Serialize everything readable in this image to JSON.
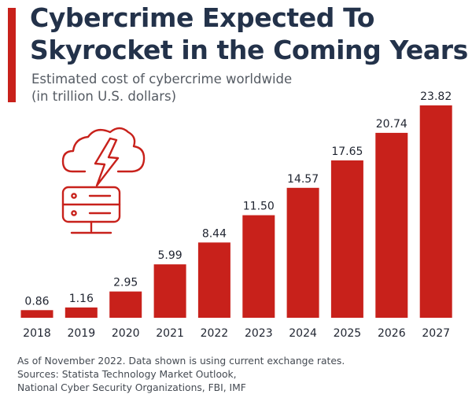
{
  "header": {
    "title_line1": "Cybercrime Expected To",
    "title_line2": "Skyrocket in the Coming Years",
    "subtitle_line1": "Estimated cost of cybercrime worldwide",
    "subtitle_line2": "(in trillion U.S. dollars)"
  },
  "chart_data": {
    "type": "bar",
    "categories": [
      "2018",
      "2019",
      "2020",
      "2021",
      "2022",
      "2023",
      "2024",
      "2025",
      "2026",
      "2027"
    ],
    "values": [
      0.86,
      1.16,
      2.95,
      5.99,
      8.44,
      11.5,
      14.57,
      17.65,
      20.74,
      23.82
    ],
    "value_labels": [
      "0.86",
      "1.16",
      "2.95",
      "5.99",
      "8.44",
      "11.50",
      "14.57",
      "17.65",
      "20.74",
      "23.82"
    ],
    "title": "Cybercrime Expected To Skyrocket in the Coming Years",
    "subtitle": "Estimated cost of cybercrime worldwide (in trillion U.S. dollars)",
    "xlabel": "",
    "ylabel": "",
    "ylim": [
      0,
      23.82
    ],
    "grid": false,
    "legend": "none",
    "bar_color": "#c8211b"
  },
  "illustration": {
    "icon": "cloud-server-lightning-icon",
    "color": "#c8211b"
  },
  "footer": {
    "note": "As of November 2022. Data shown is using current exchange rates.",
    "sources_line1": "Sources: Statista Technology Market Outlook,",
    "sources_line2": "National Cyber Security Organizations, FBI, IMF"
  }
}
